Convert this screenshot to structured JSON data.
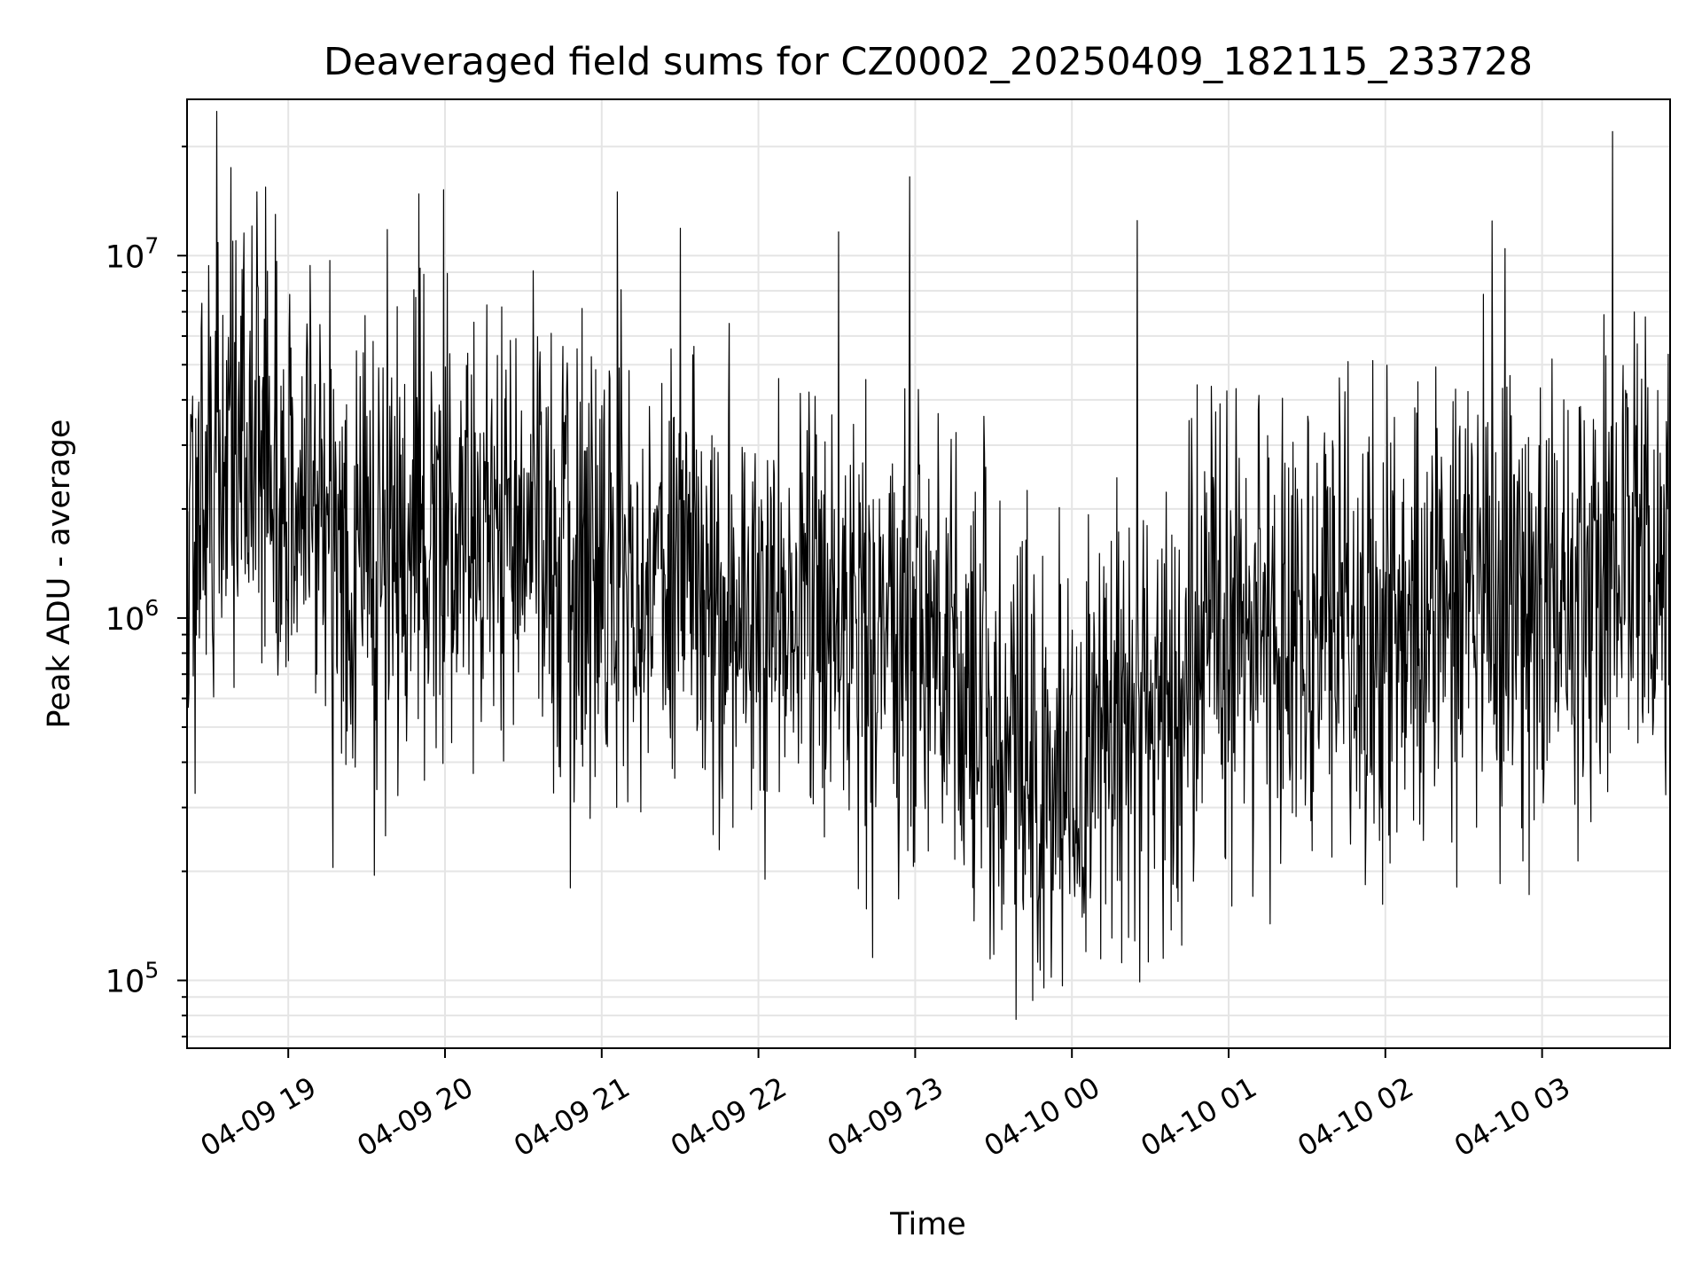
{
  "chart_data": {
    "type": "line",
    "title": "Deaveraged field sums for CZ0002_20250409_182115_233728",
    "xlabel": "Time",
    "ylabel": "Peak ADU - average",
    "yscale": "log",
    "ylim": [
      65000,
      27000000
    ],
    "xlim": [
      "2025-04-09 18:21:15",
      "2025-04-10 03:49:00"
    ],
    "grid": true,
    "legend": "none",
    "line_color": "#000000",
    "grid_color": "#e5e5e5",
    "x_ticks": [
      {
        "label": "04-09 19",
        "time": "2025-04-09 19:00"
      },
      {
        "label": "04-09 20",
        "time": "2025-04-09 20:00"
      },
      {
        "label": "04-09 21",
        "time": "2025-04-09 21:00"
      },
      {
        "label": "04-09 22",
        "time": "2025-04-09 22:00"
      },
      {
        "label": "04-09 23",
        "time": "2025-04-09 23:00"
      },
      {
        "label": "04-10 00",
        "time": "2025-04-10 00:00"
      },
      {
        "label": "04-10 01",
        "time": "2025-04-10 01:00"
      },
      {
        "label": "04-10 02",
        "time": "2025-04-10 02:00"
      },
      {
        "label": "04-10 03",
        "time": "2025-04-10 03:00"
      }
    ],
    "y_ticks": [
      {
        "base": "10",
        "exp": "5",
        "value": 100000
      },
      {
        "base": "10",
        "exp": "6",
        "value": 1000000
      },
      {
        "base": "10",
        "exp": "7",
        "value": 10000000
      }
    ],
    "envelope": {
      "times": [
        "2025-04-09 18:21",
        "2025-04-09 18:35",
        "2025-04-09 18:50",
        "2025-04-09 19:10",
        "2025-04-09 19:30",
        "2025-04-09 20:00",
        "2025-04-09 20:30",
        "2025-04-09 21:00",
        "2025-04-09 21:30",
        "2025-04-09 22:00",
        "2025-04-09 22:30",
        "2025-04-09 23:00",
        "2025-04-09 23:20",
        "2025-04-09 23:40",
        "2025-04-09 23:55",
        "2025-04-10 00:15",
        "2025-04-10 00:30",
        "2025-04-10 00:42",
        "2025-04-10 00:50",
        "2025-04-10 01:10",
        "2025-04-10 01:30",
        "2025-04-10 02:00",
        "2025-04-10 02:30",
        "2025-04-10 03:00",
        "2025-04-10 03:15",
        "2025-04-10 03:30",
        "2025-04-10 03:49"
      ],
      "median": [
        1400000,
        2500000,
        3000000,
        1600000,
        1500000,
        1700000,
        1900000,
        1300000,
        1200000,
        1000000,
        1000000,
        850000,
        600000,
        450000,
        350000,
        550000,
        600000,
        500000,
        1100000,
        1000000,
        950000,
        1000000,
        1050000,
        1000000,
        1150000,
        1600000,
        1300000
      ]
    },
    "peaks": [
      {
        "time": "2025-04-09 18:38",
        "value": 17500000
      },
      {
        "time": "2025-04-09 18:48",
        "value": 15000000
      },
      {
        "time": "2025-04-09 18:55",
        "value": 13000000
      },
      {
        "time": "2025-04-09 19:38",
        "value": 11800000
      },
      {
        "time": "2025-04-09 19:50",
        "value": 14800000
      },
      {
        "time": "2025-04-09 21:06",
        "value": 15000000
      },
      {
        "time": "2025-04-09 21:30",
        "value": 11900000
      },
      {
        "time": "2025-04-09 22:58",
        "value": 16500000
      },
      {
        "time": "2025-04-10 00:25",
        "value": 12500000
      },
      {
        "time": "2025-04-10 03:27",
        "value": 22000000
      }
    ],
    "troughs": [
      {
        "time": "2025-04-09 19:17",
        "value": 205000
      },
      {
        "time": "2025-04-09 19:33",
        "value": 195000
      },
      {
        "time": "2025-04-09 20:48",
        "value": 180000
      },
      {
        "time": "2025-04-09 23:30",
        "value": 118000
      },
      {
        "time": "2025-04-09 23:45",
        "value": 88000
      },
      {
        "time": "2025-04-09 23:52",
        "value": 102000
      },
      {
        "time": "2025-04-10 00:35",
        "value": 115000
      },
      {
        "time": "2025-04-10 00:42",
        "value": 125000
      }
    ]
  }
}
